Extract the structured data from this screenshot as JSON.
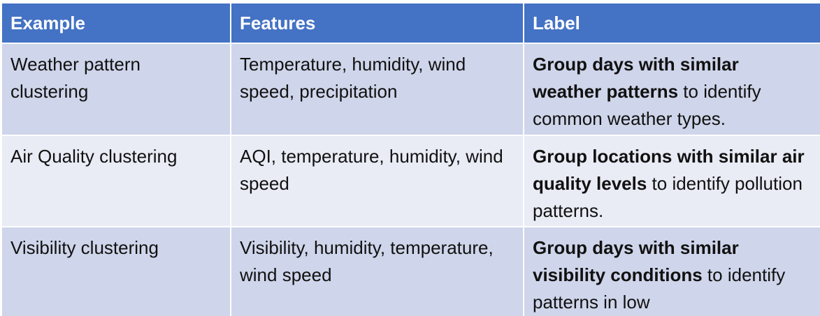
{
  "table": {
    "headers": [
      "Example",
      "Features",
      "Label"
    ],
    "rows": [
      {
        "example": "Weather pattern clustering",
        "features": "Temperature, humidity, wind speed, precipitation",
        "label_bold": "Group days with similar weather patterns",
        "label_rest": " to identify common weather types."
      },
      {
        "example": "Air Quality clustering",
        "features": "AQI, temperature, humidity, wind speed",
        "label_bold": "Group locations with similar air quality levels",
        "label_rest": " to identify pollution patterns."
      },
      {
        "example": "Visibility clustering",
        "features": "Visibility, humidity, temperature, wind speed",
        "label_bold": "Group days with similar visibility conditions",
        "label_rest": " to identify patterns in low"
      }
    ]
  },
  "colors": {
    "header_bg": "#4472c4",
    "row_dark": "#cfd5ea",
    "row_light": "#e9ebf5"
  }
}
